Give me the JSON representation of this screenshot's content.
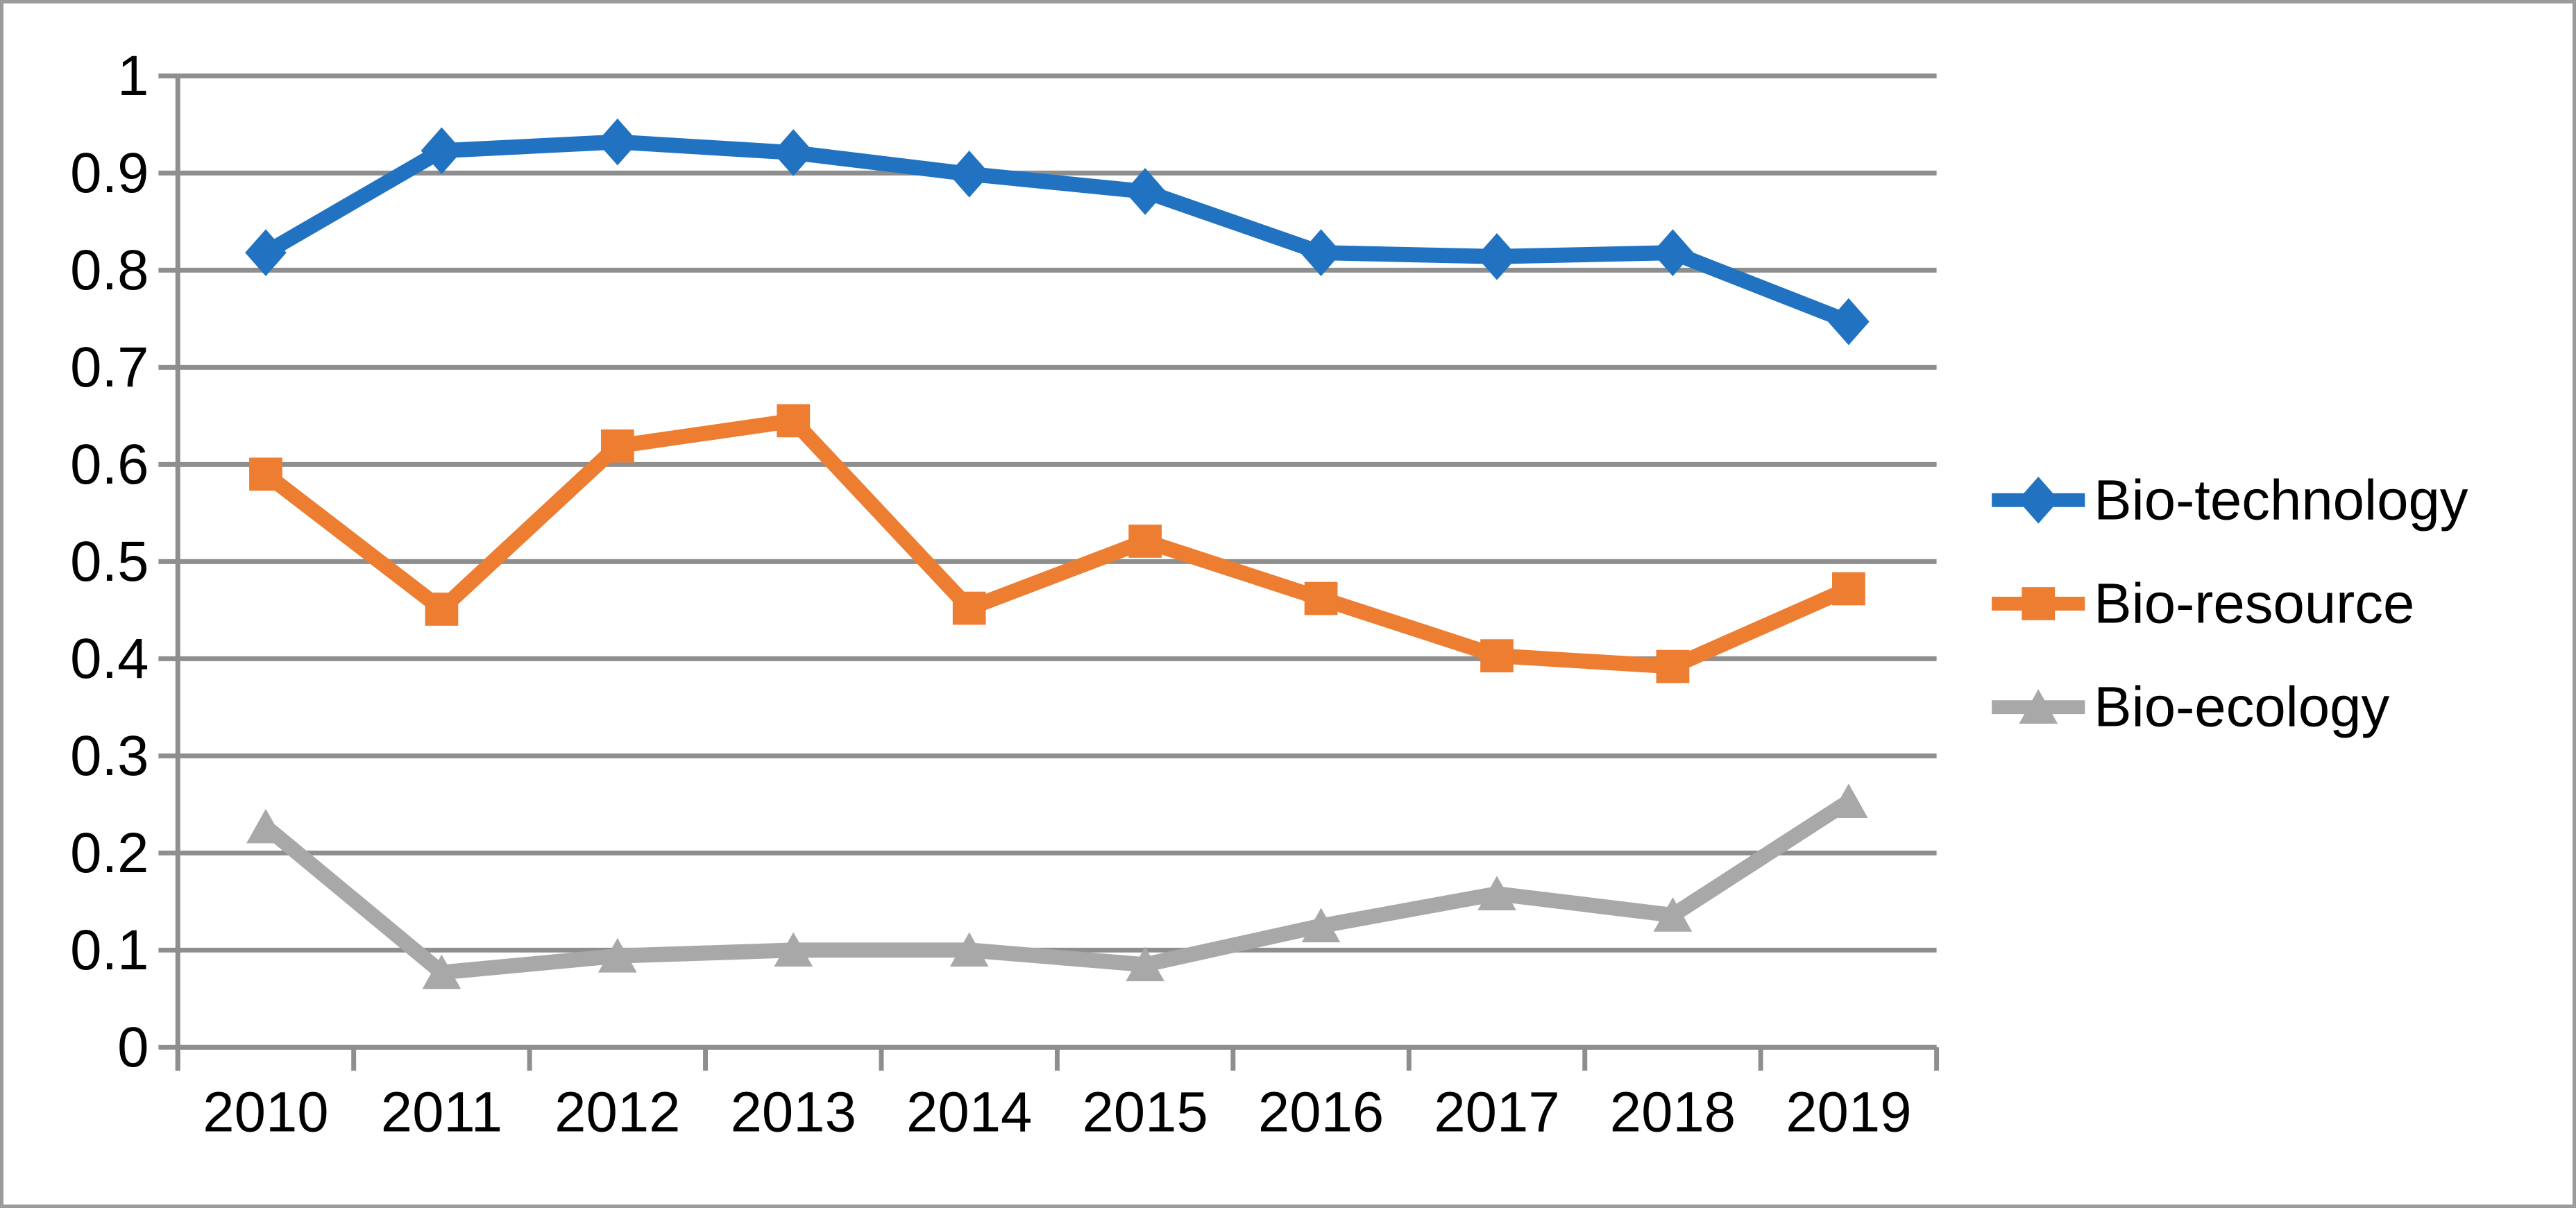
{
  "figure": {
    "background": "#ffffff",
    "border_color": "#9b9b9b"
  },
  "chart_data": {
    "type": "line",
    "title": "",
    "xlabel": "",
    "ylabel": "",
    "categories": [
      "2010",
      "2011",
      "2012",
      "2013",
      "2014",
      "2015",
      "2016",
      "2017",
      "2018",
      "2019"
    ],
    "series": [
      {
        "name": "Bio-technology",
        "marker": "diamond",
        "color": "#2173C2",
        "values": [
          0.818,
          0.923,
          0.932,
          0.921,
          0.899,
          0.881,
          0.818,
          0.814,
          0.818,
          0.747
        ]
      },
      {
        "name": "Bio-resource",
        "marker": "square",
        "color": "#ED7D31",
        "values": [
          0.59,
          0.451,
          0.619,
          0.645,
          0.452,
          0.521,
          0.462,
          0.403,
          0.392,
          0.472
        ]
      },
      {
        "name": "Bio-ecology",
        "marker": "triangle",
        "color": "#A8A8A8",
        "values": [
          0.227,
          0.077,
          0.094,
          0.1,
          0.1,
          0.085,
          0.125,
          0.158,
          0.136,
          0.253
        ]
      }
    ],
    "ylim": [
      0,
      1
    ],
    "ytick_labels": [
      "0",
      "0.1",
      "0.2",
      "0.3",
      "0.4",
      "0.5",
      "0.6",
      "0.7",
      "0.8",
      "0.9",
      "1"
    ],
    "grid": true,
    "legend_position": "right",
    "grid_color": "#8E8E8E",
    "axis_color": "#8E8E8E",
    "text_color": "#000000"
  }
}
